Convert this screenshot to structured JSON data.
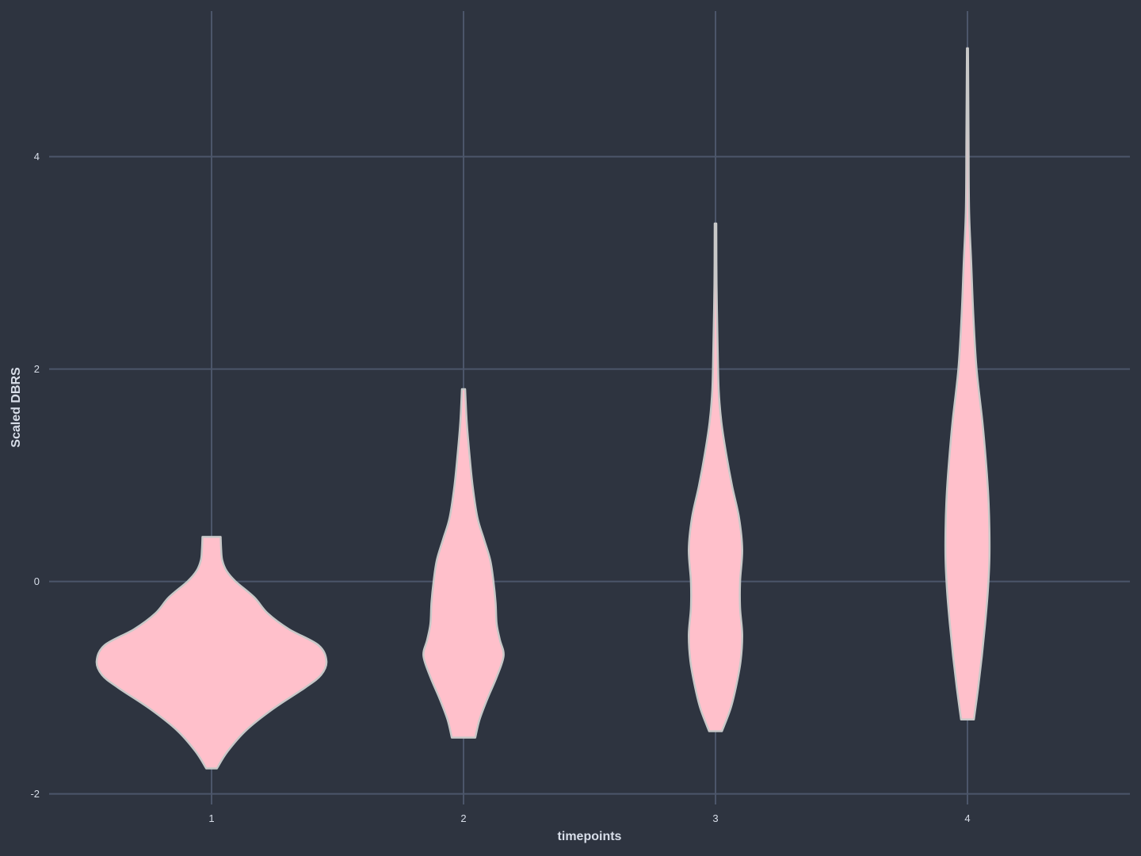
{
  "chart_data": {
    "type": "violin",
    "title": "",
    "xlabel": "timepoints",
    "ylabel": "Scaled DBRS",
    "categories": [
      "1",
      "2",
      "3",
      "4"
    ],
    "yticks": [
      -2,
      0,
      2,
      4
    ],
    "ytick_labels": [
      "-2",
      "0",
      "2",
      "4"
    ],
    "ylim": [
      -2.1,
      5.37
    ],
    "grid": true,
    "legend": "none",
    "fill_color": "#ffc0cb",
    "outline_color": "#c8c8c8",
    "background_color": "#2e3440",
    "grid_color": "#4c566a",
    "series": [
      {
        "category": "1",
        "min": -1.76,
        "max": 0.42,
        "density": [
          [
            -1.76,
            0.1
          ],
          [
            -1.6,
            0.3
          ],
          [
            -1.4,
            0.65
          ],
          [
            -1.2,
            1.15
          ],
          [
            -1.0,
            1.75
          ],
          [
            -0.88,
            2.05
          ],
          [
            -0.75,
            2.15
          ],
          [
            -0.6,
            2.0
          ],
          [
            -0.45,
            1.45
          ],
          [
            -0.3,
            1.05
          ],
          [
            -0.15,
            0.8
          ],
          [
            0.0,
            0.45
          ],
          [
            0.1,
            0.28
          ],
          [
            0.2,
            0.2
          ],
          [
            0.3,
            0.18
          ],
          [
            0.42,
            0.17
          ]
        ]
      },
      {
        "category": "2",
        "min": -1.47,
        "max": 1.81,
        "density": [
          [
            -1.47,
            0.22
          ],
          [
            -1.3,
            0.3
          ],
          [
            -1.1,
            0.45
          ],
          [
            -0.9,
            0.62
          ],
          [
            -0.7,
            0.75
          ],
          [
            -0.55,
            0.68
          ],
          [
            -0.4,
            0.62
          ],
          [
            -0.2,
            0.6
          ],
          [
            0.0,
            0.56
          ],
          [
            0.2,
            0.5
          ],
          [
            0.4,
            0.38
          ],
          [
            0.6,
            0.26
          ],
          [
            0.9,
            0.17
          ],
          [
            1.2,
            0.11
          ],
          [
            1.5,
            0.06
          ],
          [
            1.81,
            0.03
          ]
        ]
      },
      {
        "category": "3",
        "min": -1.41,
        "max": 3.37,
        "density": [
          [
            -1.41,
            0.12
          ],
          [
            -1.2,
            0.28
          ],
          [
            -1.0,
            0.38
          ],
          [
            -0.75,
            0.47
          ],
          [
            -0.5,
            0.5
          ],
          [
            -0.25,
            0.46
          ],
          [
            0.0,
            0.46
          ],
          [
            0.3,
            0.5
          ],
          [
            0.6,
            0.44
          ],
          [
            0.9,
            0.31
          ],
          [
            1.2,
            0.2
          ],
          [
            1.5,
            0.11
          ],
          [
            1.8,
            0.06
          ],
          [
            2.2,
            0.04
          ],
          [
            2.8,
            0.02
          ],
          [
            3.37,
            0.015
          ]
        ]
      },
      {
        "category": "4",
        "min": -1.3,
        "max": 5.02,
        "density": [
          [
            -1.3,
            0.12
          ],
          [
            -1.0,
            0.2
          ],
          [
            -0.7,
            0.27
          ],
          [
            -0.4,
            0.33
          ],
          [
            -0.1,
            0.38
          ],
          [
            0.2,
            0.41
          ],
          [
            0.5,
            0.41
          ],
          [
            0.8,
            0.39
          ],
          [
            1.1,
            0.35
          ],
          [
            1.5,
            0.28
          ],
          [
            2.0,
            0.17
          ],
          [
            2.5,
            0.11
          ],
          [
            3.0,
            0.07
          ],
          [
            3.5,
            0.03
          ],
          [
            4.2,
            0.02
          ],
          [
            5.02,
            0.01
          ]
        ]
      }
    ]
  }
}
